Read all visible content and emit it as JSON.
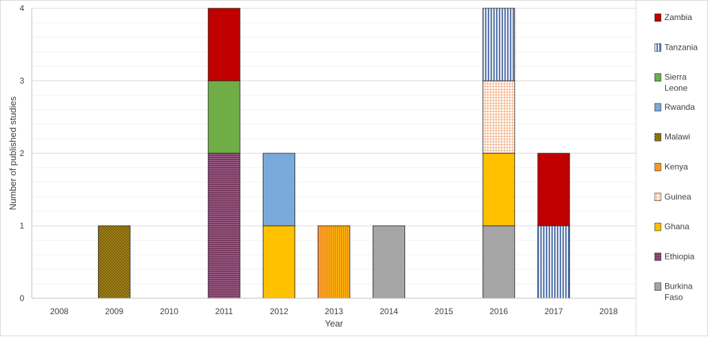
{
  "chart_data": {
    "type": "bar",
    "stacked": true,
    "title": "",
    "xlabel": "Year",
    "ylabel": "Number of published studies",
    "ylim": [
      0,
      4
    ],
    "yticks": [
      0,
      1,
      2,
      3,
      4
    ],
    "grid": true,
    "legend_position": "right",
    "categories": [
      "2008",
      "2009",
      "2010",
      "2011",
      "2012",
      "2013",
      "2014",
      "2015",
      "2016",
      "2017",
      "2018"
    ],
    "series": [
      {
        "name": "Burkina Faso",
        "legend_lines": [
          "Burkina",
          "Faso"
        ],
        "color": "#a5a5a5",
        "pattern": "solid",
        "values": [
          0,
          0,
          0,
          0,
          0,
          0,
          1,
          0,
          1,
          0,
          0
        ]
      },
      {
        "name": "Ethiopia",
        "legend_lines": [
          "Ethiopia"
        ],
        "color": "#7b3a60",
        "pattern": "hlines",
        "values": [
          0,
          0,
          0,
          2,
          0,
          0,
          0,
          0,
          0,
          0,
          0
        ]
      },
      {
        "name": "Ghana",
        "legend_lines": [
          "Ghana"
        ],
        "color": "#ffc000",
        "pattern": "solid",
        "values": [
          0,
          0,
          0,
          0,
          1,
          0,
          0,
          0,
          1,
          0,
          0
        ]
      },
      {
        "name": "Guinea",
        "legend_lines": [
          "Guinea"
        ],
        "color": "#f4b183",
        "pattern": "grid",
        "values": [
          0,
          0,
          0,
          0,
          0,
          0,
          0,
          0,
          1,
          0,
          0
        ]
      },
      {
        "name": "Kenya",
        "legend_lines": [
          "Kenya"
        ],
        "color": "#ed7d31",
        "pattern": "vlines",
        "values": [
          0,
          0,
          0,
          0,
          0,
          1,
          0,
          0,
          0,
          0,
          0
        ]
      },
      {
        "name": "Malawi",
        "legend_lines": [
          "Malawi"
        ],
        "color": "#7f6000",
        "pattern": "dots",
        "values": [
          0,
          1,
          0,
          0,
          0,
          0,
          0,
          0,
          0,
          0,
          0
        ]
      },
      {
        "name": "Rwanda",
        "legend_lines": [
          "Rwanda"
        ],
        "color": "#7aaadb",
        "pattern": "solid",
        "values": [
          0,
          0,
          0,
          0,
          1,
          0,
          0,
          0,
          0,
          0,
          0
        ]
      },
      {
        "name": "Sierra Leone",
        "legend_lines": [
          "Sierra",
          "Leone"
        ],
        "color": "#70ad47",
        "pattern": "solid",
        "values": [
          0,
          0,
          0,
          1,
          0,
          0,
          0,
          0,
          0,
          0,
          0
        ]
      },
      {
        "name": "Tanzania",
        "legend_lines": [
          "Tanzania"
        ],
        "color": "#2f5597",
        "pattern": "vstripes",
        "values": [
          0,
          0,
          0,
          0,
          0,
          0,
          0,
          0,
          1,
          1,
          0
        ]
      },
      {
        "name": "Zambia",
        "legend_lines": [
          "Zambia"
        ],
        "color": "#c00000",
        "pattern": "solid",
        "values": [
          0,
          0,
          0,
          1,
          0,
          0,
          0,
          0,
          0,
          1,
          0
        ]
      }
    ]
  }
}
